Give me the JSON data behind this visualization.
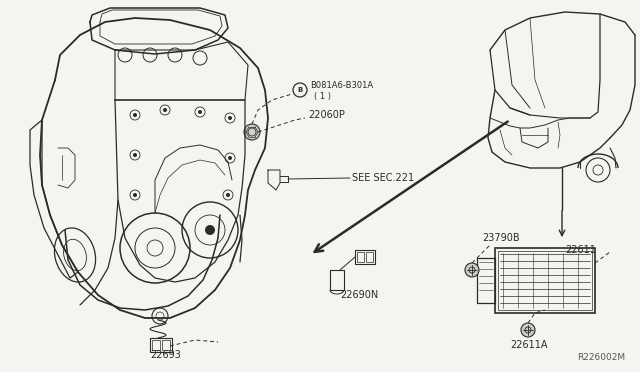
{
  "bg_color": "#f5f5f0",
  "line_color": "#2a2a2a",
  "fig_width": 6.4,
  "fig_height": 3.72,
  "dpi": 100,
  "labels": {
    "bolt": "B081A6-B301A",
    "bolt2": "( 1 )",
    "part1": "22060P",
    "see_sec": "SEE SEC.221",
    "part2": "22690N",
    "part3": "22693",
    "part4": "23790B",
    "part5": "22611",
    "part6": "22611A",
    "ref": "R226002M"
  }
}
